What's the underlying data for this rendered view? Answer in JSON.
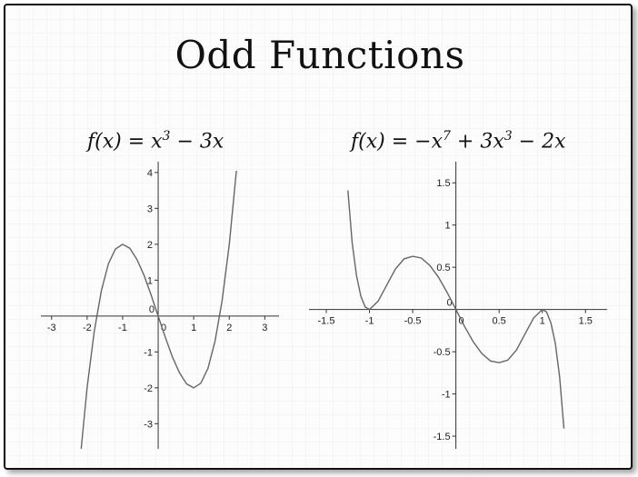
{
  "slide": {
    "title": "Odd Functions",
    "formula_left": {
      "f": "f(x) = x",
      "exp1": "3",
      "rest": " − 3x"
    },
    "formula_right": {
      "f": "f(x) = −x",
      "exp1": "7",
      "mid": " + 3x",
      "exp2": "3",
      "rest": " − 2x"
    }
  },
  "chart_data": [
    {
      "type": "line",
      "title": "f(x) = x^3 − 3x",
      "xlabel": "",
      "ylabel": "",
      "xlim": [
        -3.3,
        3.4
      ],
      "ylim": [
        -3.7,
        4.3
      ],
      "x_ticks": [
        -3,
        -2,
        -1,
        0,
        1,
        2,
        3
      ],
      "x_tick_labels": [
        "-3",
        "-2",
        "-1",
        "0",
        "1",
        "2",
        "3"
      ],
      "y_ticks": [
        -3,
        -2,
        -1,
        0,
        1,
        2,
        3,
        4
      ],
      "y_tick_labels": [
        "-3",
        "-2",
        "-1",
        "0",
        "1",
        "2",
        "3",
        "4"
      ],
      "series": [
        {
          "x": [
            -2.2,
            -2.0,
            -1.8,
            -1.6,
            -1.4,
            -1.2,
            -1.0,
            -0.8,
            -0.6,
            -0.4,
            -0.2,
            0.0,
            0.2,
            0.4,
            0.6,
            0.8,
            1.0,
            1.2,
            1.4,
            1.6,
            1.8,
            2.0,
            2.2
          ],
          "values": [
            -4.05,
            -2.0,
            -0.43,
            0.7,
            1.46,
            1.87,
            2.0,
            1.89,
            1.58,
            1.14,
            0.59,
            0.0,
            -0.59,
            -1.14,
            -1.58,
            -1.89,
            -2.0,
            -1.87,
            -1.46,
            -0.7,
            0.43,
            2.0,
            4.05
          ]
        }
      ],
      "grid": false
    },
    {
      "type": "line",
      "title": "f(x) = −x^7 + 3x^3 − 2x",
      "xlabel": "",
      "ylabel": "",
      "xlim": [
        -1.7,
        1.75
      ],
      "ylim": [
        -1.65,
        1.75
      ],
      "x_ticks": [
        -1.5,
        -1,
        -0.5,
        0,
        0.5,
        1,
        1.5
      ],
      "x_tick_labels": [
        "-1.5",
        "-1",
        "-0.5",
        "0",
        "0.5",
        "1",
        "1.5"
      ],
      "y_ticks": [
        -1.5,
        -1,
        -0.5,
        0,
        0.5,
        1,
        1.5
      ],
      "y_tick_labels": [
        "-1.5",
        "-1",
        "-0.5",
        "0",
        "0.5",
        "1",
        "1.5"
      ],
      "series": [
        {
          "x": [
            -1.25,
            -1.2,
            -1.15,
            -1.1,
            -1.05,
            -1.0,
            -0.9,
            -0.8,
            -0.7,
            -0.6,
            -0.5,
            -0.4,
            -0.3,
            -0.2,
            -0.1,
            0.0,
            0.1,
            0.2,
            0.3,
            0.4,
            0.5,
            0.6,
            0.7,
            0.8,
            0.9,
            1.0,
            1.05,
            1.1,
            1.15,
            1.2,
            1.25
          ],
          "values": [
            1.41,
            0.79,
            0.4,
            0.16,
            0.03,
            0.0,
            0.1,
            0.29,
            0.48,
            0.6,
            0.63,
            0.61,
            0.52,
            0.38,
            0.2,
            0.0,
            -0.2,
            -0.38,
            -0.52,
            -0.61,
            -0.63,
            -0.6,
            -0.48,
            -0.29,
            -0.1,
            0.0,
            -0.03,
            -0.16,
            -0.4,
            -0.79,
            -1.41
          ]
        }
      ],
      "grid": false
    }
  ]
}
